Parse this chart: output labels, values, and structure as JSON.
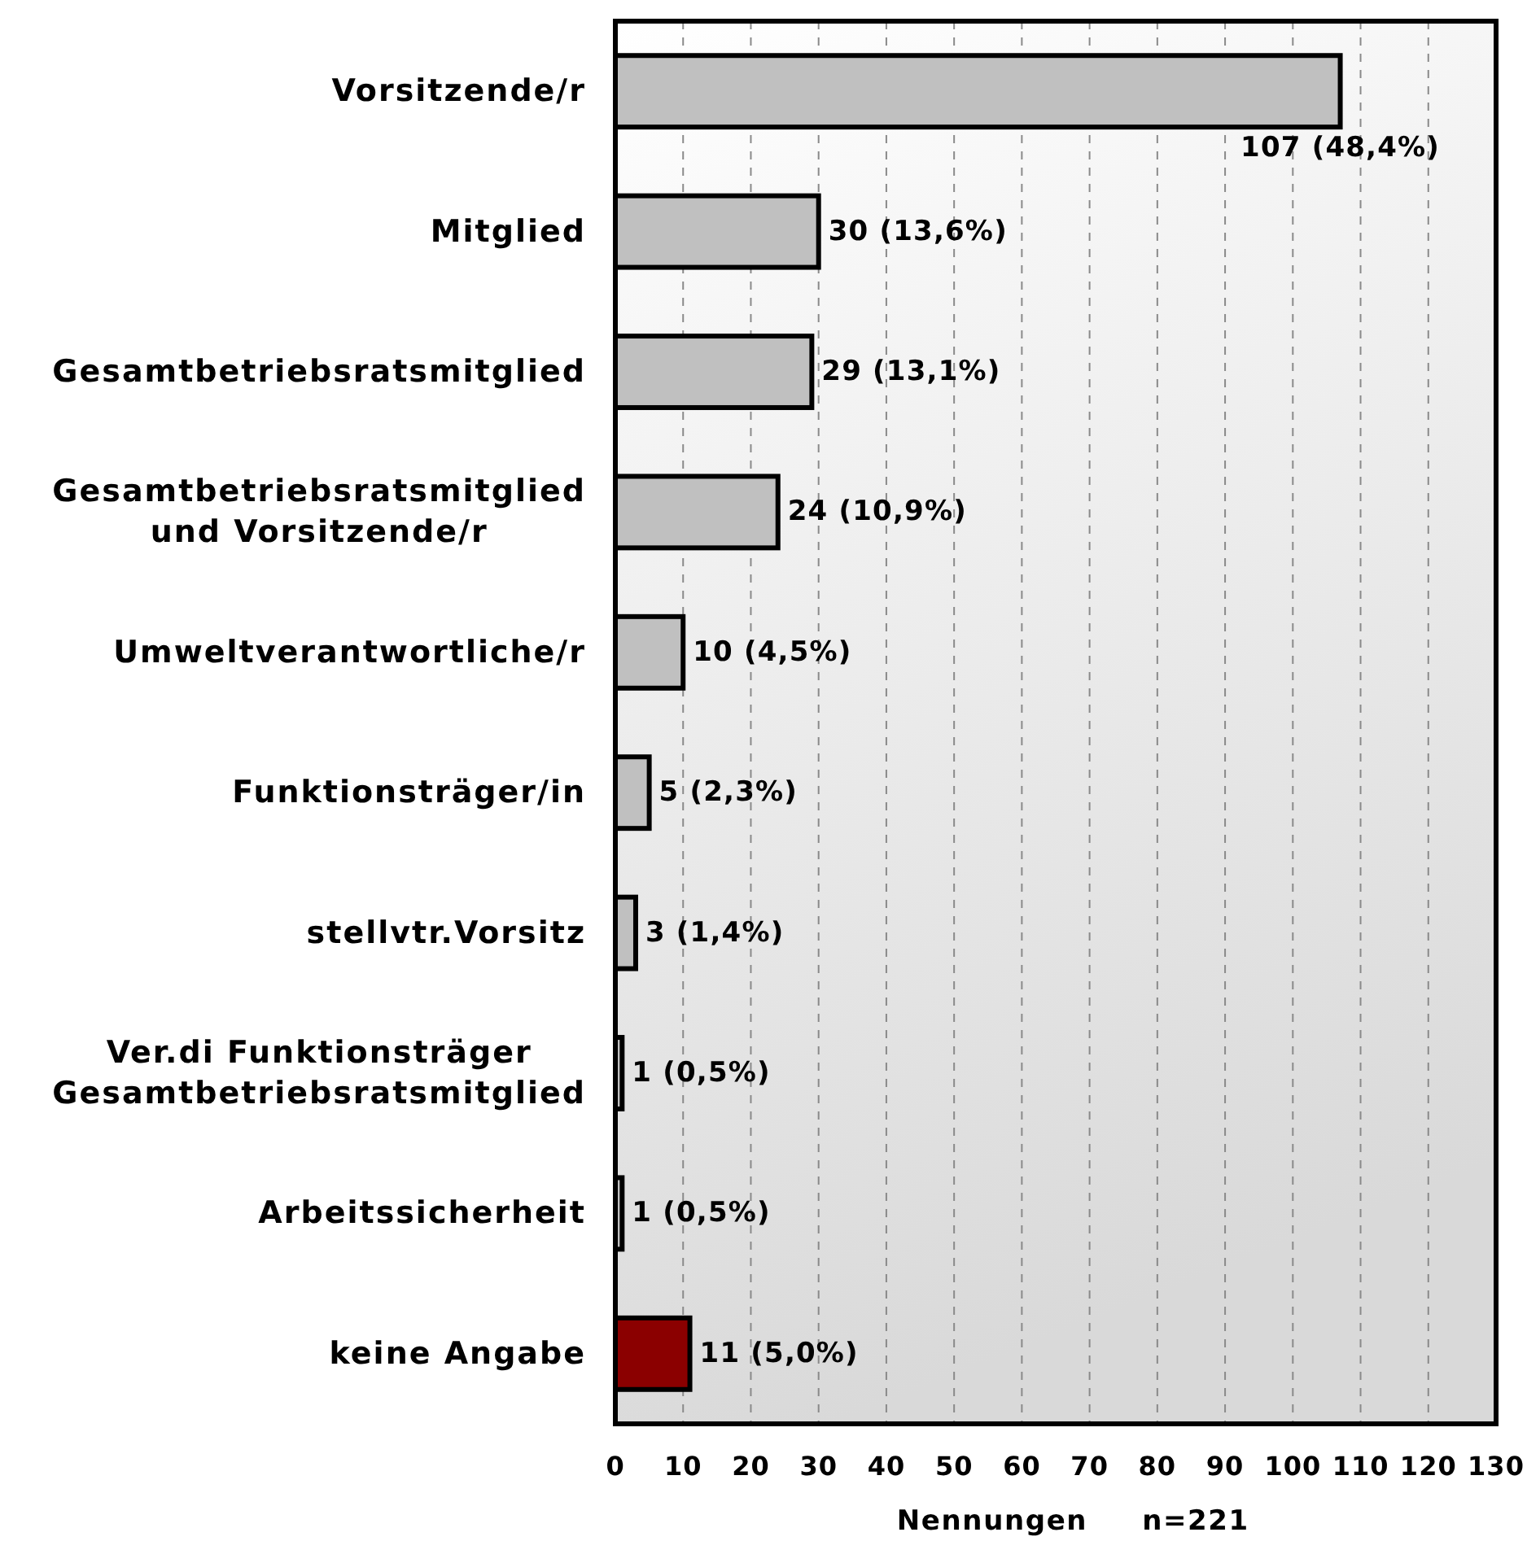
{
  "chart_data": {
    "type": "bar",
    "orientation": "horizontal",
    "categories": [
      "Vorsitzende/r",
      "Mitglied",
      "Gesamtbetriebsratsmitglied",
      "Gesamtbetriebsratsmitglied und Vorsitzende/r",
      "Umweltverantwortliche/r",
      "Funktionsträger/in",
      "stellvtr.Vorsitz",
      "Ver.di Funktionsträger Gesamtbetriebsratsmitglied",
      "Arbeitssicherheit",
      "keine Angabe"
    ],
    "values": [
      107,
      30,
      29,
      24,
      10,
      5,
      3,
      1,
      1,
      11
    ],
    "colors": [
      "#c0c0c0",
      "#c0c0c0",
      "#c0c0c0",
      "#c0c0c0",
      "#c0c0c0",
      "#c0c0c0",
      "#c0c0c0",
      "#c0c0c0",
      "#c0c0c0",
      "#8b0000"
    ],
    "value_labels": [
      "107 (48,4%)",
      "30 (13,6%)",
      "29 (13,1%)",
      "24 (10,9%)",
      "10 (4,5%)",
      "5 (2,3%)",
      "3 (1,4%)",
      "1 (0,5%)",
      "1 (0,5%)",
      "11 (5,0%)"
    ],
    "xlim": [
      0,
      130
    ],
    "xticks": [
      0,
      10,
      20,
      30,
      40,
      50,
      60,
      70,
      80,
      90,
      100,
      110,
      120,
      130
    ],
    "grid": "x",
    "xlabel": "Nennungen",
    "annotations": [
      "n=221"
    ]
  }
}
